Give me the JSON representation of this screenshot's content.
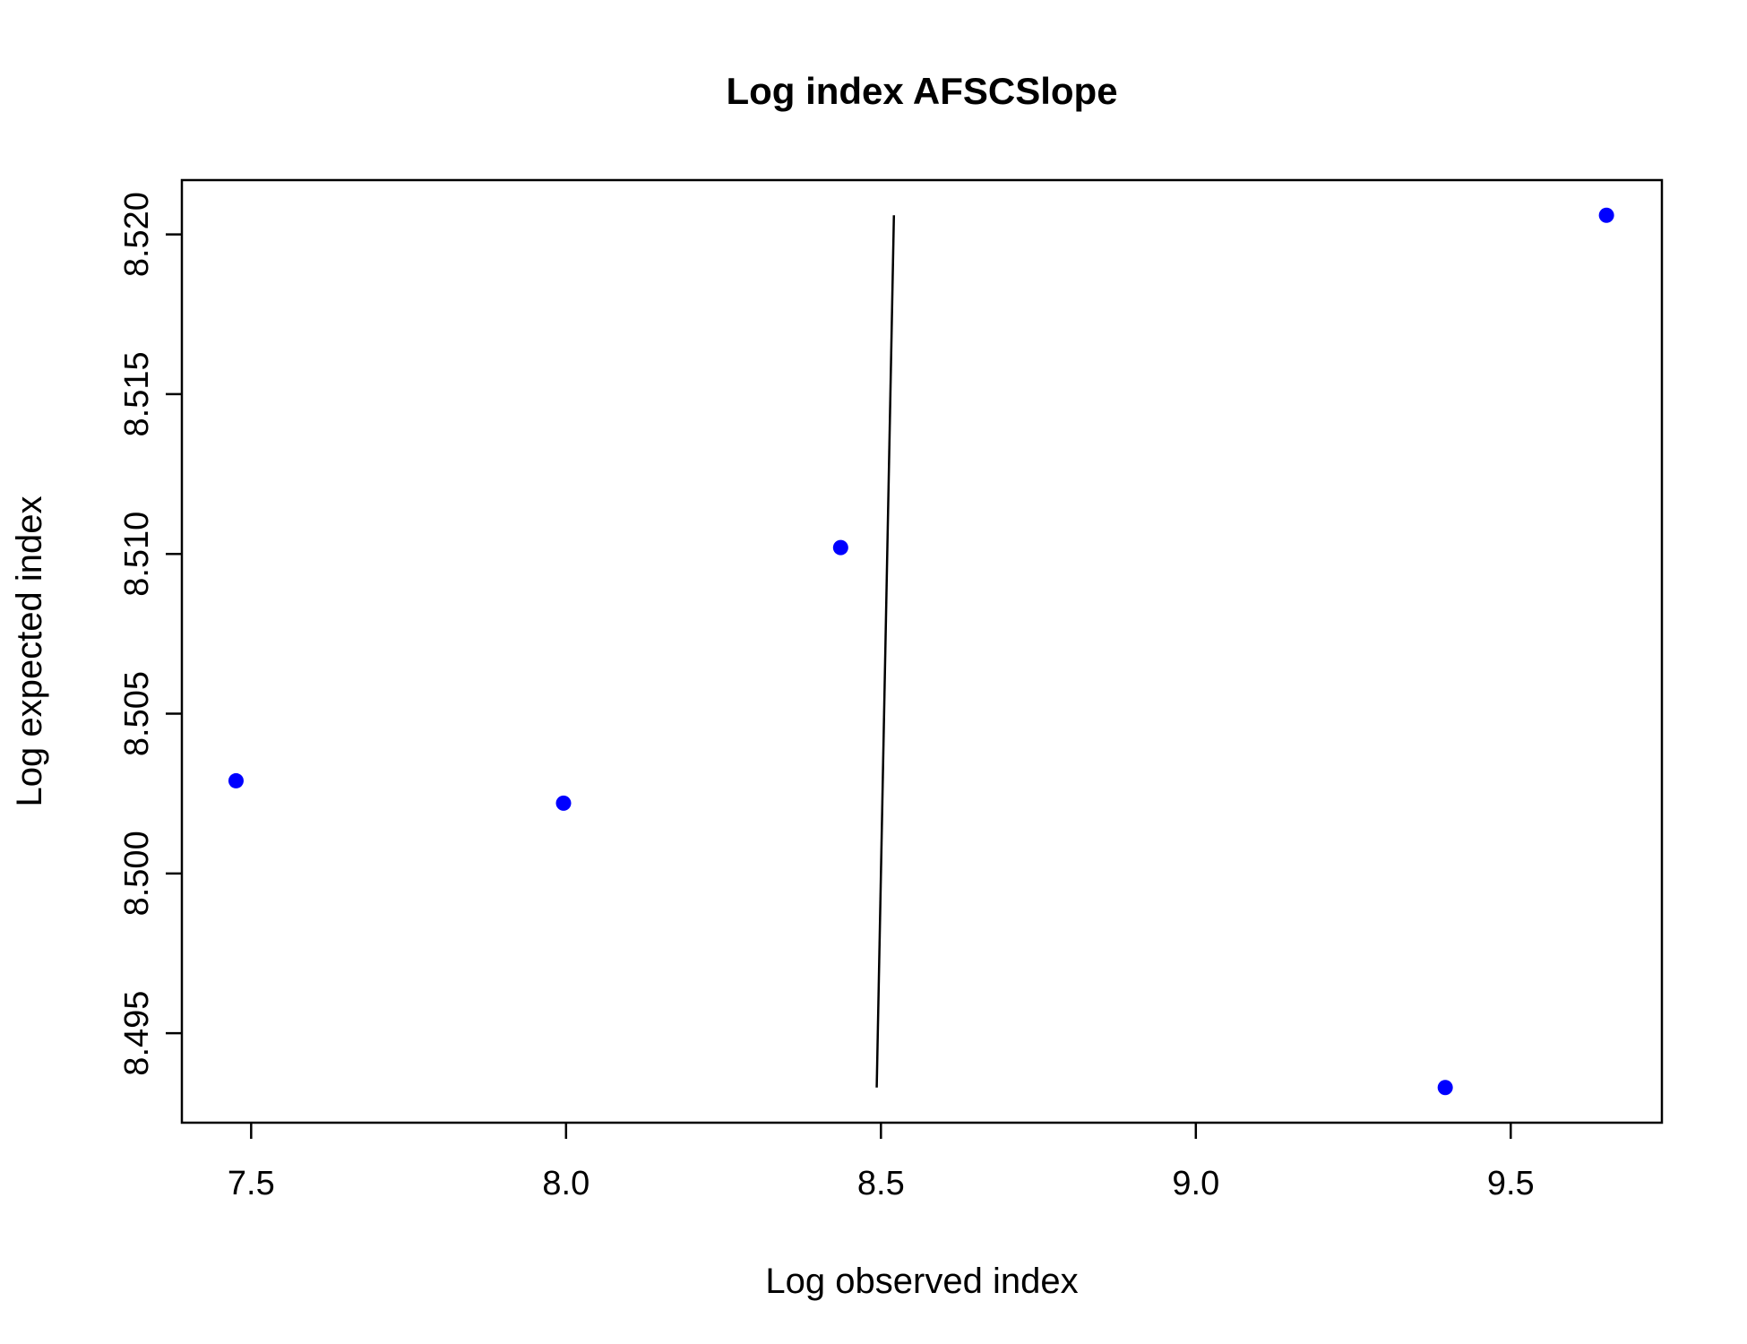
{
  "chart_data": {
    "type": "scatter",
    "title": "Log index AFSCSlope",
    "xlabel": "Log observed index",
    "ylabel": "Log expected index",
    "xlim": [
      7.39,
      9.74
    ],
    "ylim": [
      8.4922,
      8.5217
    ],
    "x_ticks": [
      7.5,
      8.0,
      8.5,
      9.0,
      9.5
    ],
    "x_tick_labels": [
      "7.5",
      "8.0",
      "8.5",
      "9.0",
      "9.5"
    ],
    "y_ticks": [
      8.495,
      8.5,
      8.505,
      8.51,
      8.515,
      8.52
    ],
    "y_tick_labels": [
      "8.495",
      "8.500",
      "8.505",
      "8.510",
      "8.515",
      "8.520"
    ],
    "grid": false,
    "series": [
      {
        "type": "scatter",
        "color": "#0000ff",
        "x": [
          7.476,
          7.996,
          8.436,
          9.396,
          9.652
        ],
        "y": [
          8.5029,
          8.5022,
          8.5102,
          8.4933,
          8.5206
        ]
      },
      {
        "type": "line",
        "color": "#000000",
        "x": [
          8.4933,
          8.5206
        ],
        "y": [
          8.4933,
          8.5206
        ]
      }
    ]
  }
}
